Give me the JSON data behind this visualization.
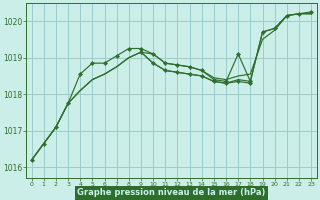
{
  "title": "Graphe pression niveau de la mer (hPa)",
  "bg_color": "#cceee8",
  "grid_color": "#99cccc",
  "line_color": "#2d6e2d",
  "marker_color": "#2d6e2d",
  "title_bg": "#2d6e2d",
  "title_fg": "#cceee8",
  "xlim": [
    -0.5,
    23.5
  ],
  "ylim": [
    1015.7,
    1020.5
  ],
  "xtick_labels": [
    "0",
    "1",
    "2",
    "3",
    "4",
    "5",
    "6",
    "7",
    "8",
    "9",
    "10",
    "11",
    "12",
    "13",
    "14",
    "15",
    "16",
    "17",
    "18",
    "19",
    "20",
    "21",
    "22",
    "23"
  ],
  "yticks": [
    1016,
    1017,
    1018,
    1019,
    1020
  ],
  "series_with_markers": [
    [
      1016.2,
      1016.65,
      1017.1,
      1017.75,
      1018.55,
      1018.85,
      1018.85,
      1019.05,
      1019.25,
      1019.25,
      1019.1,
      1018.85,
      1018.8,
      1018.75,
      1018.65,
      1018.4,
      1018.35,
      1019.1,
      null,
      null,
      null,
      null,
      null,
      null
    ],
    [
      null,
      null,
      null,
      null,
      null,
      null,
      null,
      null,
      null,
      null,
      1018.9,
      1018.85,
      1018.8,
      1018.75,
      1018.65,
      1018.4,
      1018.35,
      1018.4,
      1018.35,
      null,
      null,
      null,
      null,
      null
    ],
    [
      null,
      null,
      null,
      null,
      null,
      null,
      null,
      null,
      null,
      1019.25,
      1018.9,
      1018.7,
      1018.6,
      1018.55,
      1018.5,
      1018.35,
      1018.3,
      1018.35,
      1018.3,
      null,
      null,
      null,
      null,
      null
    ]
  ],
  "series_line1": [
    1016.2,
    1016.65,
    1017.1,
    1017.75,
    1018.1,
    1018.4,
    1018.55,
    1018.75,
    1019.0,
    1019.15,
    1019.1,
    1018.85,
    1018.8,
    1018.75,
    1018.65,
    1018.45,
    1018.4,
    1018.5,
    1018.55,
    1019.5,
    1019.75,
    1020.15,
    1020.2,
    1020.2
  ],
  "series_line2": [
    1016.2,
    1016.65,
    1017.1,
    1017.75,
    1018.1,
    1018.4,
    1018.55,
    1018.75,
    1019.0,
    1019.15,
    1018.85,
    1018.65,
    1018.6,
    1018.55,
    1018.5,
    1018.35,
    1018.3,
    1018.4,
    1018.35,
    1019.7,
    1019.8,
    1020.15,
    1020.2,
    1020.2
  ],
  "series_markers_main": [
    1016.2,
    1016.65,
    1017.1,
    1017.75,
    1018.55,
    1018.85,
    1018.85,
    1019.05,
    1019.25,
    1019.25,
    1019.1,
    1018.85,
    1018.8,
    1018.75,
    1018.65,
    1018.4,
    1018.35,
    1019.1,
    1018.35,
    1019.7,
    1019.8,
    1020.15,
    1020.2,
    1020.25
  ],
  "series_markers_secondary": [
    null,
    null,
    null,
    null,
    null,
    null,
    null,
    null,
    null,
    1019.15,
    1018.85,
    1018.65,
    1018.6,
    1018.55,
    1018.5,
    1018.35,
    1018.3,
    1018.35,
    1018.3,
    null,
    null,
    null,
    null,
    null
  ]
}
